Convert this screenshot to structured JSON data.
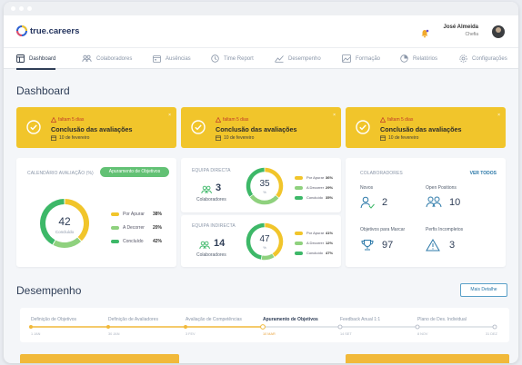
{
  "app": {
    "logo_text": "true.careers"
  },
  "user": {
    "name": "José Almeida",
    "role": "Chefia"
  },
  "nav": [
    {
      "label": "Dashboard",
      "icon": "dashboard-icon",
      "active": true
    },
    {
      "label": "Colaboradores",
      "icon": "people-icon"
    },
    {
      "label": "Ausências",
      "icon": "calendar-icon"
    },
    {
      "label": "Time Report",
      "icon": "clock-icon"
    },
    {
      "label": "Desempenho",
      "icon": "chart-line-icon"
    },
    {
      "label": "Formação",
      "icon": "image-icon"
    },
    {
      "label": "Relatórios",
      "icon": "report-icon"
    },
    {
      "label": "Configurações",
      "icon": "settings-icon"
    }
  ],
  "page_title": "Dashboard",
  "alerts": [
    {
      "warning": "faltam 5 dias",
      "title": "Conclusão das avaliações",
      "date": "10 de fevereiro",
      "close": "×"
    },
    {
      "warning": "faltam 5 dias",
      "title": "Conclusão das avaliações",
      "date": "10 de fevereiro",
      "close": "×"
    },
    {
      "warning": "faltam 5 dias",
      "title": "Conclusão das avaliações",
      "date": "10 de fevereiro",
      "close": "×"
    }
  ],
  "calendar_card": {
    "label": "CALENDÁRIO AVALIAÇÃO (%)",
    "pill": "Apuramento de Objetivos",
    "total": "42",
    "total_label": "Concluído",
    "legend": [
      {
        "label": "Por Apurar",
        "value": "38%",
        "color": "#f1c52b"
      },
      {
        "label": "A Decorrer",
        "value": "20%",
        "color": "#8fd17e"
      },
      {
        "label": "Concluído",
        "value": "42%",
        "color": "#3db868"
      }
    ]
  },
  "team_direct": {
    "label": "EQUIPA DIRECTA",
    "count": "3",
    "count_label": "Colaboradores",
    "donut_value": "35",
    "donut_unit": "%",
    "legend": [
      {
        "label": "Por Apurar",
        "value": "36%",
        "color": "#f1c52b"
      },
      {
        "label": "A Decorrer",
        "value": "29%",
        "color": "#8fd17e"
      },
      {
        "label": "Concluído",
        "value": "35%",
        "color": "#3db868"
      }
    ]
  },
  "team_indirect": {
    "label": "EQUIPA INDIRECTA",
    "count": "14",
    "count_label": "Colaboradores",
    "donut_value": "47",
    "donut_unit": "%",
    "legend": [
      {
        "label": "Por Apurar",
        "value": "41%",
        "color": "#f1c52b"
      },
      {
        "label": "A Decorrer",
        "value": "12%",
        "color": "#8fd17e"
      },
      {
        "label": "Concluído",
        "value": "47%",
        "color": "#3db868"
      }
    ]
  },
  "collaborators": {
    "label": "COLABORADORES",
    "link": "VER TODOS",
    "kpis": [
      {
        "label": "Novos",
        "value": "2",
        "icon": "user-check-icon"
      },
      {
        "label": "Open Positions",
        "value": "10",
        "icon": "people-icon"
      },
      {
        "label": "Objetivos para Marcar",
        "value": "97",
        "icon": "trophy-icon"
      },
      {
        "label": "Perfis Incompletos",
        "value": "3",
        "icon": "warning-icon"
      }
    ]
  },
  "desempenho": {
    "title": "Desempenho",
    "button": "Mais Detalhe",
    "phases": [
      {
        "label": "Definição de Objetivos",
        "date": "1 JAN",
        "status": "done"
      },
      {
        "label": "Definição de Avaliadores",
        "date": "30 JAN",
        "status": "done"
      },
      {
        "label": "Avaliação de Competências",
        "date": "3 FEV",
        "status": "done"
      },
      {
        "label": "Apuramento de Objetivos",
        "date": "10 MAR",
        "status": "active"
      },
      {
        "label": "Feedback Anual 1:1",
        "date": "14 SET",
        "status": "pending"
      },
      {
        "label": "Plano de Des. Individual",
        "date": "8 NOV",
        "status": "pending"
      },
      {
        "label": "",
        "date": "31 DEZ",
        "status": "end"
      }
    ]
  },
  "colors": {
    "accent": "#f1c52b",
    "green": "#3db868",
    "light_green": "#8fd17e",
    "navy": "#2f3e57"
  }
}
